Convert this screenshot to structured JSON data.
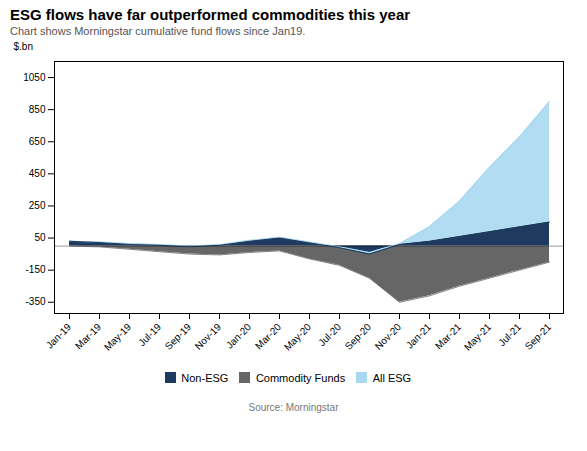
{
  "chart_data": {
    "type": "area",
    "title": "ESG flows have far outperformed commodities this year",
    "subtitle": "Chart shows Morningstar cumulative fund flows since Jan19.",
    "source": "Source: Morningstar",
    "ylabel": "$.bn",
    "categories": [
      "Jan-19",
      "Mar-19",
      "May-19",
      "Jul-19",
      "Sep-19",
      "Nov-19",
      "Jan-20",
      "Mar-20",
      "May-20",
      "Jul-20",
      "Sep-20",
      "Nov-20",
      "Jan-21",
      "Mar-21",
      "May-21",
      "Jul-21",
      "Sep-21"
    ],
    "series": [
      {
        "name": "Non-ESG",
        "color": "#1e3a5f",
        "values": [
          30,
          22,
          10,
          5,
          -5,
          5,
          30,
          50,
          20,
          -10,
          -50,
          10,
          30,
          60,
          90,
          120,
          150
        ]
      },
      {
        "name": "Commodity Funds",
        "color": "#666666",
        "values": [
          0,
          -5,
          -20,
          -35,
          -50,
          -55,
          -40,
          -30,
          -80,
          -120,
          -200,
          -350,
          -310,
          -250,
          -200,
          -150,
          -100
        ]
      },
      {
        "name": "All ESG",
        "color": "#a8d8f0",
        "values": [
          30,
          25,
          15,
          10,
          0,
          8,
          35,
          55,
          25,
          -5,
          -40,
          15,
          120,
          280,
          490,
          680,
          900
        ]
      }
    ],
    "ylim": [
      -420,
      1150
    ],
    "yticks": [
      -350,
      -150,
      50,
      250,
      450,
      650,
      850,
      1050
    ],
    "grid": false,
    "legend": "bottom"
  }
}
